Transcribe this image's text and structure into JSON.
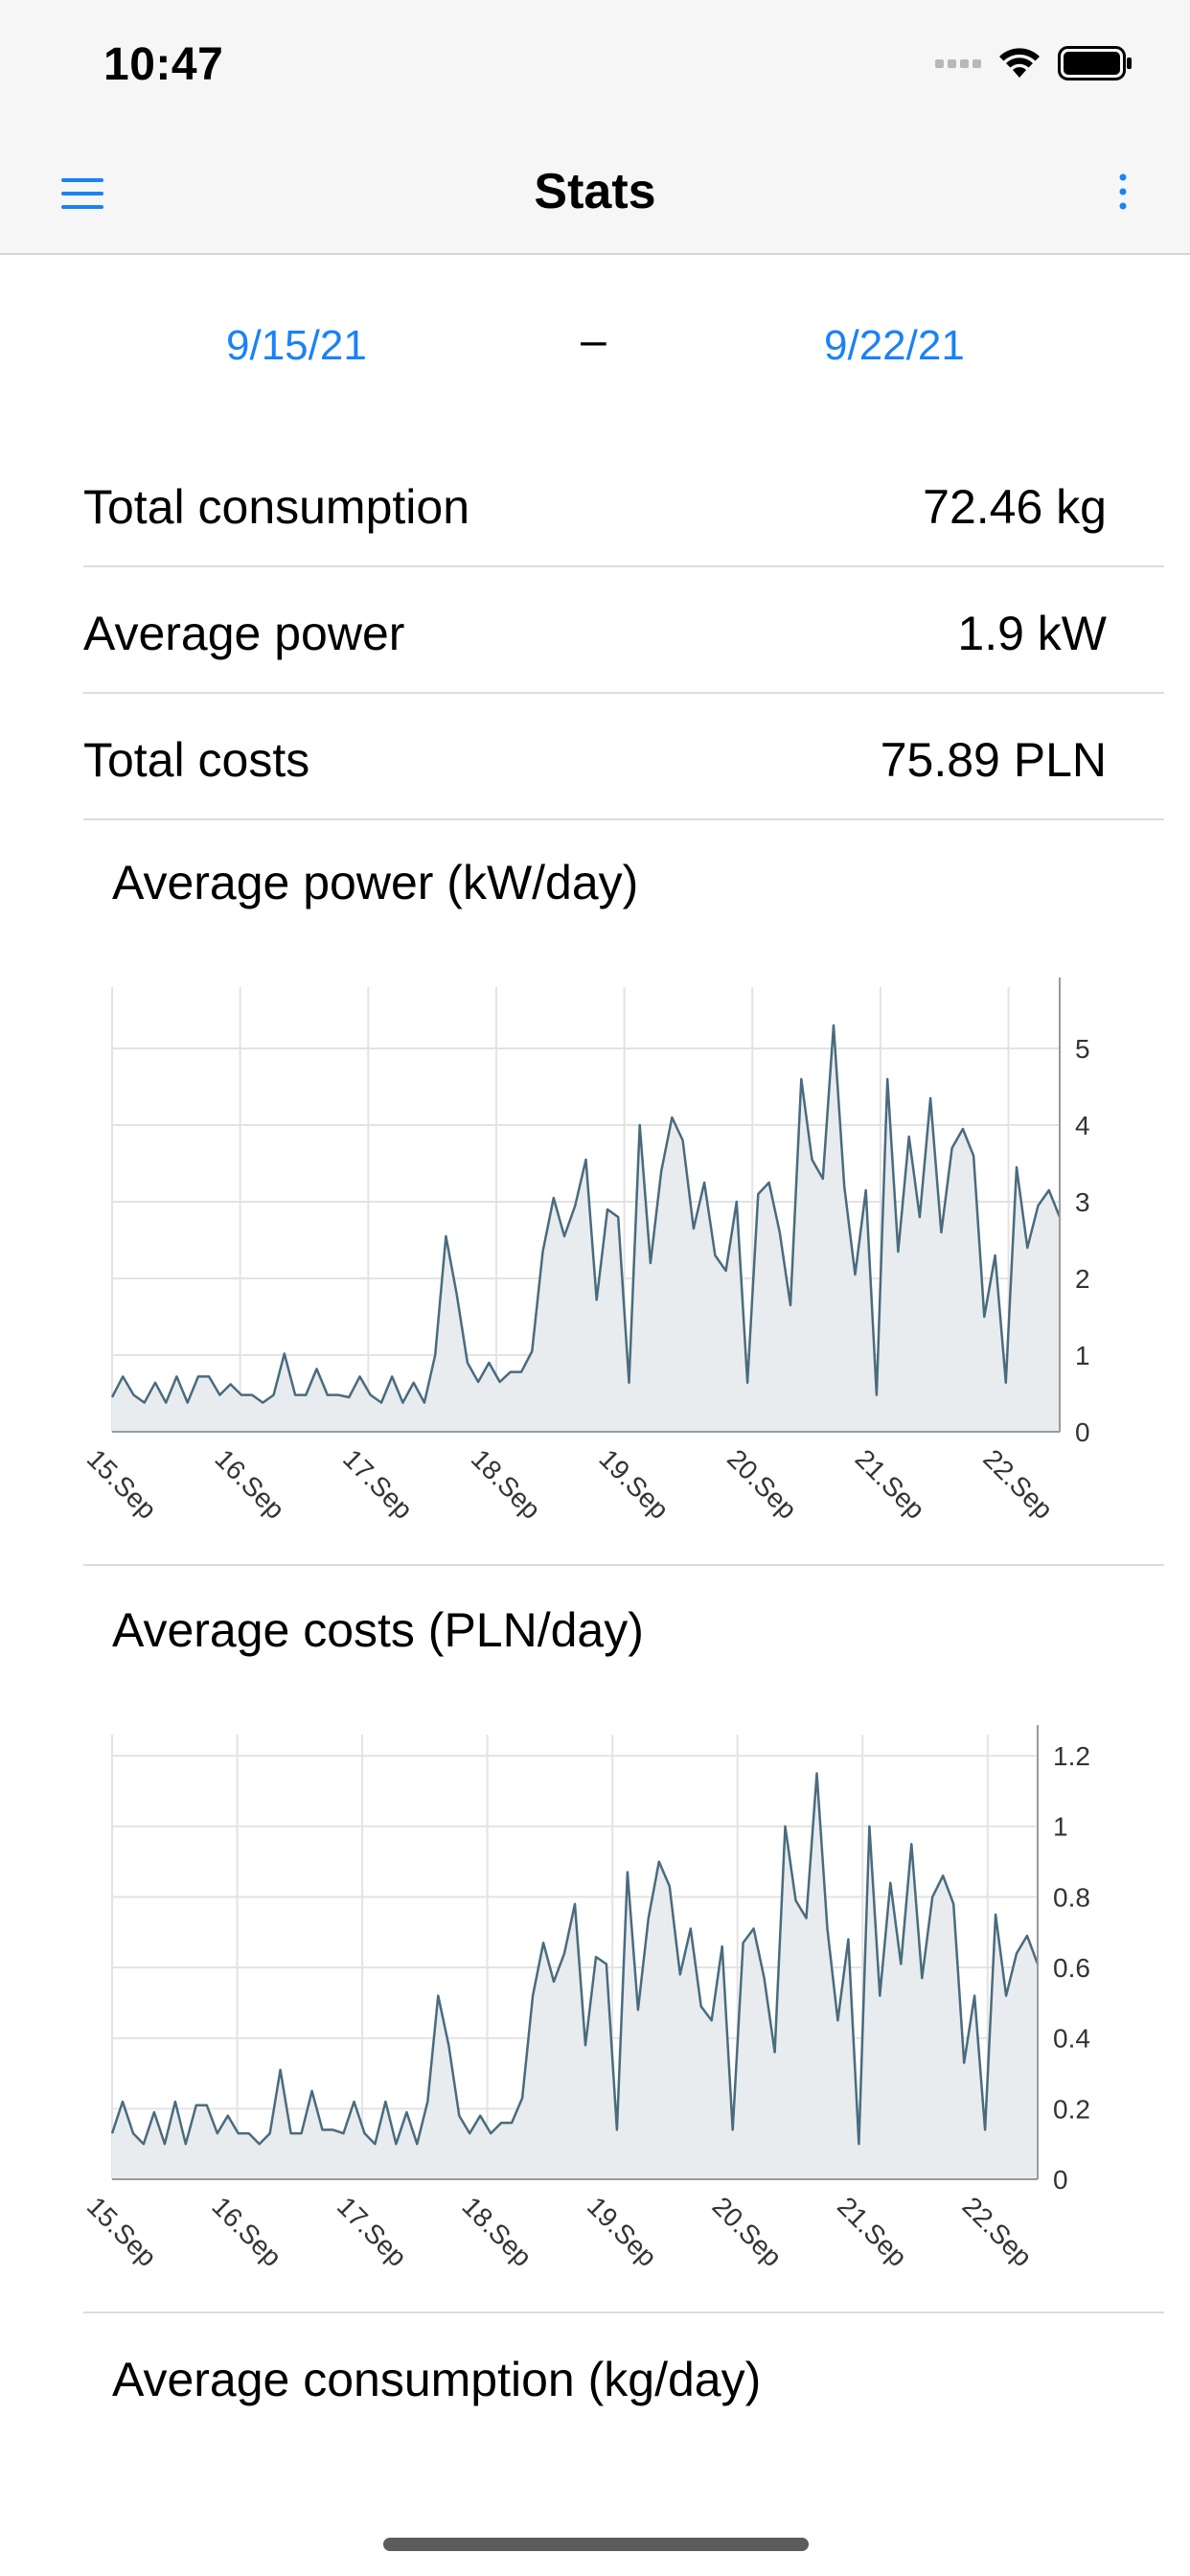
{
  "status_bar": {
    "time": "10:47"
  },
  "nav": {
    "title": "Stats"
  },
  "date_range": {
    "start": "9/15/21",
    "separator": "–",
    "end": "9/22/21"
  },
  "stats": [
    {
      "label": "Total consumption",
      "value": "72.46 kg"
    },
    {
      "label": "Average power",
      "value": "1.9 kW"
    },
    {
      "label": "Total costs",
      "value": "75.89 PLN"
    }
  ],
  "colors": {
    "accent": "#1a82f7",
    "series_line": "#4a6b7e",
    "series_fill": "#e8ecef"
  },
  "chart_data": [
    {
      "type": "area",
      "title": "Average power (kW/day)",
      "x_tick_labels": [
        "15.Sep",
        "16.Sep",
        "17.Sep",
        "18.Sep",
        "19.Sep",
        "20.Sep",
        "21.Sep",
        "22.Sep"
      ],
      "x_range_days": [
        0,
        7.4
      ],
      "ylim": [
        0,
        5.8
      ],
      "y_ticks": [
        0,
        1,
        2,
        3,
        4,
        5
      ],
      "y_tick_labels": [
        "0",
        "1",
        "2",
        "3",
        "4",
        "5"
      ],
      "y_axis_side": "right",
      "grid": true,
      "series": [
        {
          "values": [
            0.45,
            0.72,
            0.48,
            0.38,
            0.64,
            0.38,
            0.72,
            0.38,
            0.72,
            0.72,
            0.48,
            0.62,
            0.48,
            0.48,
            0.38,
            0.48,
            1.02,
            0.48,
            0.48,
            0.82,
            0.48,
            0.48,
            0.45,
            0.72,
            0.48,
            0.38,
            0.72,
            0.38,
            0.64,
            0.38,
            1.0,
            2.55,
            1.8,
            0.9,
            0.65,
            0.9,
            0.65,
            0.78,
            0.78,
            1.05,
            2.35,
            3.05,
            2.55,
            2.95,
            3.55,
            1.72,
            2.9,
            2.8,
            0.64,
            4.0,
            2.2,
            3.4,
            4.1,
            3.8,
            2.65,
            3.25,
            2.3,
            2.1,
            3.0,
            0.64,
            3.1,
            3.25,
            2.6,
            1.65,
            4.6,
            3.55,
            3.3,
            5.3,
            3.2,
            2.05,
            3.15,
            0.48,
            4.6,
            2.35,
            3.85,
            2.8,
            4.35,
            2.6,
            3.7,
            3.95,
            3.6,
            1.5,
            2.3,
            0.64,
            3.45,
            2.4,
            2.95,
            3.15,
            2.8
          ]
        }
      ]
    },
    {
      "type": "area",
      "title": "Average costs (PLN/day)",
      "x_tick_labels": [
        "15.Sep",
        "16.Sep",
        "17.Sep",
        "18.Sep",
        "19.Sep",
        "20.Sep",
        "21.Sep",
        "22.Sep"
      ],
      "x_range_days": [
        0,
        7.4
      ],
      "ylim": [
        0,
        1.26
      ],
      "y_ticks": [
        0,
        0.2,
        0.4,
        0.6,
        0.8,
        1,
        1.2
      ],
      "y_tick_labels": [
        "0",
        "0.2",
        "0.4",
        "0.6",
        "0.8",
        "1",
        "1.2"
      ],
      "y_axis_side": "right",
      "grid": true,
      "series": [
        {
          "values": [
            0.13,
            0.22,
            0.13,
            0.1,
            0.19,
            0.1,
            0.22,
            0.1,
            0.21,
            0.21,
            0.13,
            0.18,
            0.13,
            0.13,
            0.1,
            0.13,
            0.31,
            0.13,
            0.13,
            0.25,
            0.14,
            0.14,
            0.13,
            0.22,
            0.13,
            0.1,
            0.22,
            0.1,
            0.19,
            0.1,
            0.22,
            0.52,
            0.38,
            0.18,
            0.13,
            0.18,
            0.13,
            0.16,
            0.16,
            0.23,
            0.52,
            0.67,
            0.56,
            0.64,
            0.78,
            0.38,
            0.63,
            0.61,
            0.14,
            0.87,
            0.48,
            0.74,
            0.9,
            0.83,
            0.58,
            0.71,
            0.49,
            0.45,
            0.66,
            0.14,
            0.67,
            0.71,
            0.57,
            0.36,
            1.0,
            0.79,
            0.74,
            1.15,
            0.71,
            0.45,
            0.68,
            0.1,
            1.0,
            0.52,
            0.84,
            0.61,
            0.95,
            0.57,
            0.8,
            0.86,
            0.78,
            0.33,
            0.52,
            0.14,
            0.75,
            0.52,
            0.64,
            0.69,
            0.61
          ]
        }
      ]
    }
  ],
  "consumption_section": {
    "title": "Average consumption (kg/day)"
  }
}
